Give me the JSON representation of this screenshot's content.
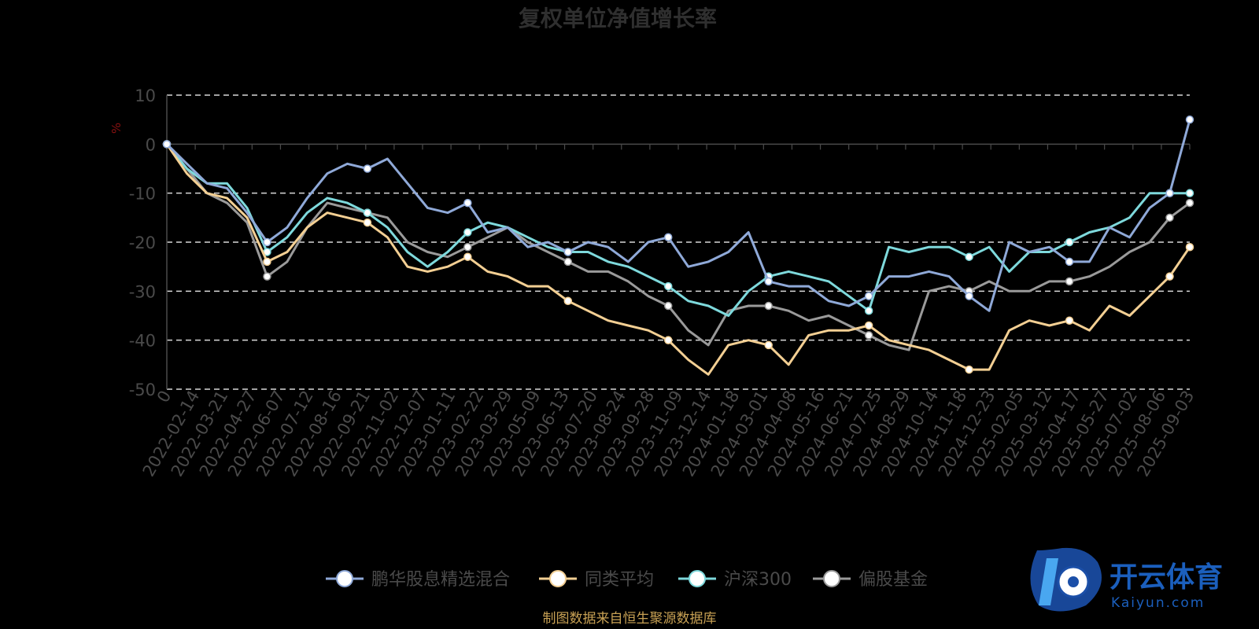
{
  "chart_data": {
    "type": "line",
    "title": "复权单位净值增长率",
    "ylabel": "%",
    "xlabel": "",
    "ylim": [
      -50,
      10
    ],
    "yticks": [
      10,
      0,
      -10,
      -20,
      -30,
      -40,
      -50
    ],
    "grid": true,
    "legend_position": "bottom",
    "x_tick_labels": [
      "0",
      "2022-02-14",
      "2022-03-21",
      "2022-04-27",
      "2022-06-07",
      "2022-07-12",
      "2022-08-16",
      "2022-09-21",
      "2022-11-02",
      "2022-12-07",
      "2023-01-11",
      "2023-02-22",
      "2023-03-29",
      "2023-05-09",
      "2023-06-13",
      "2023-07-20",
      "2023-08-24",
      "2023-09-28",
      "2023-11-09",
      "2023-12-14",
      "2024-01-18",
      "2024-03-01",
      "2024-04-08",
      "2024-05-16",
      "2024-06-21",
      "2024-07-25",
      "2024-08-29",
      "2024-10-14",
      "2024-11-18",
      "2024-12-23",
      "2025-02-05",
      "2025-03-12",
      "2025-04-17",
      "2025-05-27",
      "2025-07-02",
      "2025-08-06",
      "2025-09-03"
    ],
    "series": [
      {
        "name": "鹏华股息精选混合",
        "color": "#8fa9d8",
        "values": [
          0,
          -4,
          -8,
          -9,
          -14,
          -20,
          -17,
          -11,
          -6,
          -4,
          -5,
          -3,
          -8,
          -13,
          -14,
          -12,
          -18,
          -17,
          -21,
          -20,
          -22,
          -20,
          -21,
          -24,
          -20,
          -19,
          -25,
          -24,
          -22,
          -18,
          -28,
          -29,
          -29,
          -32,
          -33,
          -31,
          -27,
          -27,
          -26,
          -27,
          -31,
          -34,
          -20,
          -22,
          -21,
          -24,
          -24,
          -17,
          -19,
          -13,
          -10,
          5
        ]
      },
      {
        "name": "同类平均",
        "color": "#f3cf93",
        "values": [
          0,
          -6,
          -10,
          -11,
          -15,
          -24,
          -22,
          -17,
          -14,
          -15,
          -16,
          -19,
          -25,
          -26,
          -25,
          -23,
          -26,
          -27,
          -29,
          -29,
          -32,
          -34,
          -36,
          -37,
          -38,
          -40,
          -44,
          -47,
          -41,
          -40,
          -41,
          -45,
          -39,
          -38,
          -38,
          -37,
          -40,
          -41,
          -42,
          -44,
          -46,
          -46,
          -38,
          -36,
          -37,
          -36,
          -38,
          -33,
          -35,
          -31,
          -27,
          -21
        ]
      },
      {
        "name": "沪深300",
        "color": "#7ed9dc",
        "values": [
          0,
          -5,
          -8,
          -8,
          -13,
          -22,
          -19,
          -14,
          -11,
          -12,
          -14,
          -17,
          -22,
          -25,
          -22,
          -18,
          -16,
          -17,
          -19,
          -21,
          -22,
          -22,
          -24,
          -25,
          -27,
          -29,
          -32,
          -33,
          -35,
          -30,
          -27,
          -26,
          -27,
          -28,
          -31,
          -34,
          -21,
          -22,
          -21,
          -21,
          -23,
          -21,
          -26,
          -22,
          -22,
          -20,
          -18,
          -17,
          -15,
          -10,
          -10,
          -10
        ]
      },
      {
        "name": "偏股基金",
        "color": "#9a9a9a",
        "values": [
          0,
          -5,
          -10,
          -12,
          -16,
          -27,
          -24,
          -17,
          -12,
          -13,
          -14,
          -15,
          -20,
          -22,
          -23,
          -21,
          -19,
          -17,
          -20,
          -22,
          -24,
          -26,
          -26,
          -28,
          -31,
          -33,
          -38,
          -41,
          -34,
          -33,
          -33,
          -34,
          -36,
          -35,
          -37,
          -39,
          -41,
          -42,
          -30,
          -29,
          -30,
          -28,
          -30,
          -30,
          -28,
          -28,
          -27,
          -25,
          -22,
          -20,
          -15,
          -12
        ]
      }
    ]
  },
  "source_text": "制图数据来自恒生聚源数据库",
  "watermark": {
    "cn": "开云体育",
    "en": "Kaiyun.com"
  }
}
